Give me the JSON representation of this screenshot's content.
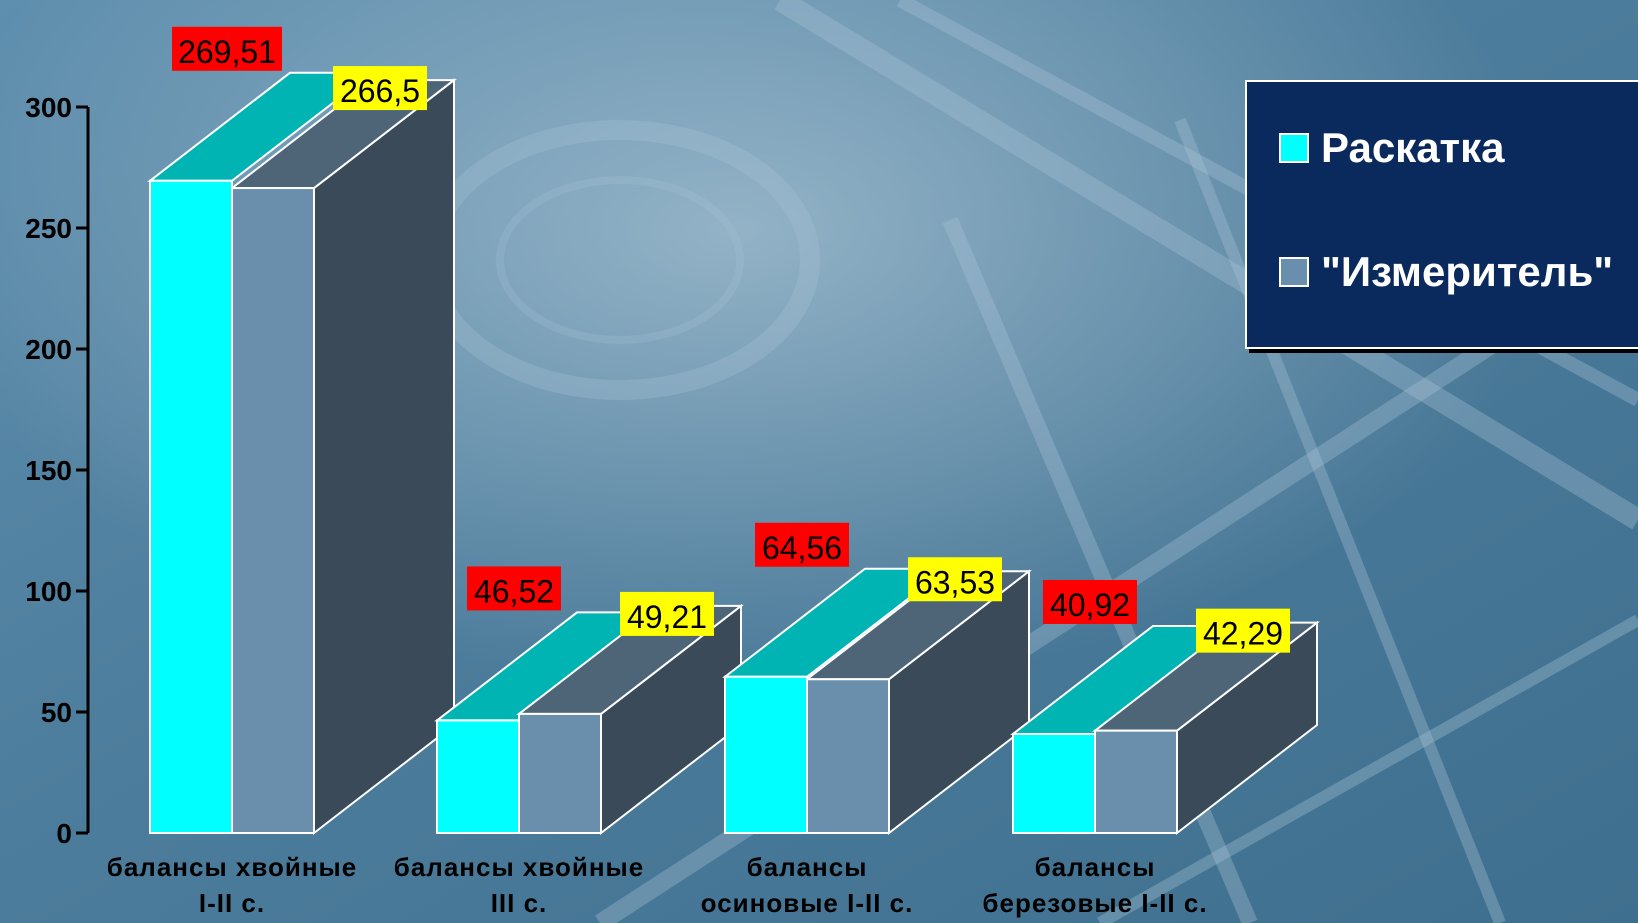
{
  "chart_data": {
    "type": "bar",
    "categories": [
      [
        "балансы хвойные",
        "I-II с."
      ],
      [
        "балансы хвойные",
        "III с."
      ],
      [
        "балансы",
        "осиновые I-II с."
      ],
      [
        "балансы",
        "березовые I-II с."
      ]
    ],
    "series": [
      {
        "name": "Раскатка",
        "values": [
          269.51,
          46.52,
          64.56,
          40.92
        ],
        "labels": [
          "269,51",
          "46,52",
          "64,56",
          "40,92"
        ],
        "color": "#00ffff",
        "top_color": "#00b4b4",
        "label_bg": "#ff0000"
      },
      {
        "name": "\"Измеритель\"",
        "values": [
          266.5,
          49.21,
          63.53,
          42.29
        ],
        "labels": [
          "266,5",
          "49,21",
          "63,53",
          "42,29"
        ],
        "color": "#6a8fad",
        "top_color": "#4e6577",
        "side_color": "#3a4a59",
        "label_bg": "#ffff00"
      }
    ],
    "y_ticks": [
      "0",
      "50",
      "100",
      "150",
      "200",
      "250",
      "300"
    ],
    "ylim": [
      0,
      300
    ],
    "legend_position": "right",
    "grid": false
  },
  "colors": {
    "legend_bg": "#0a2a5e",
    "axis": "#000000"
  }
}
